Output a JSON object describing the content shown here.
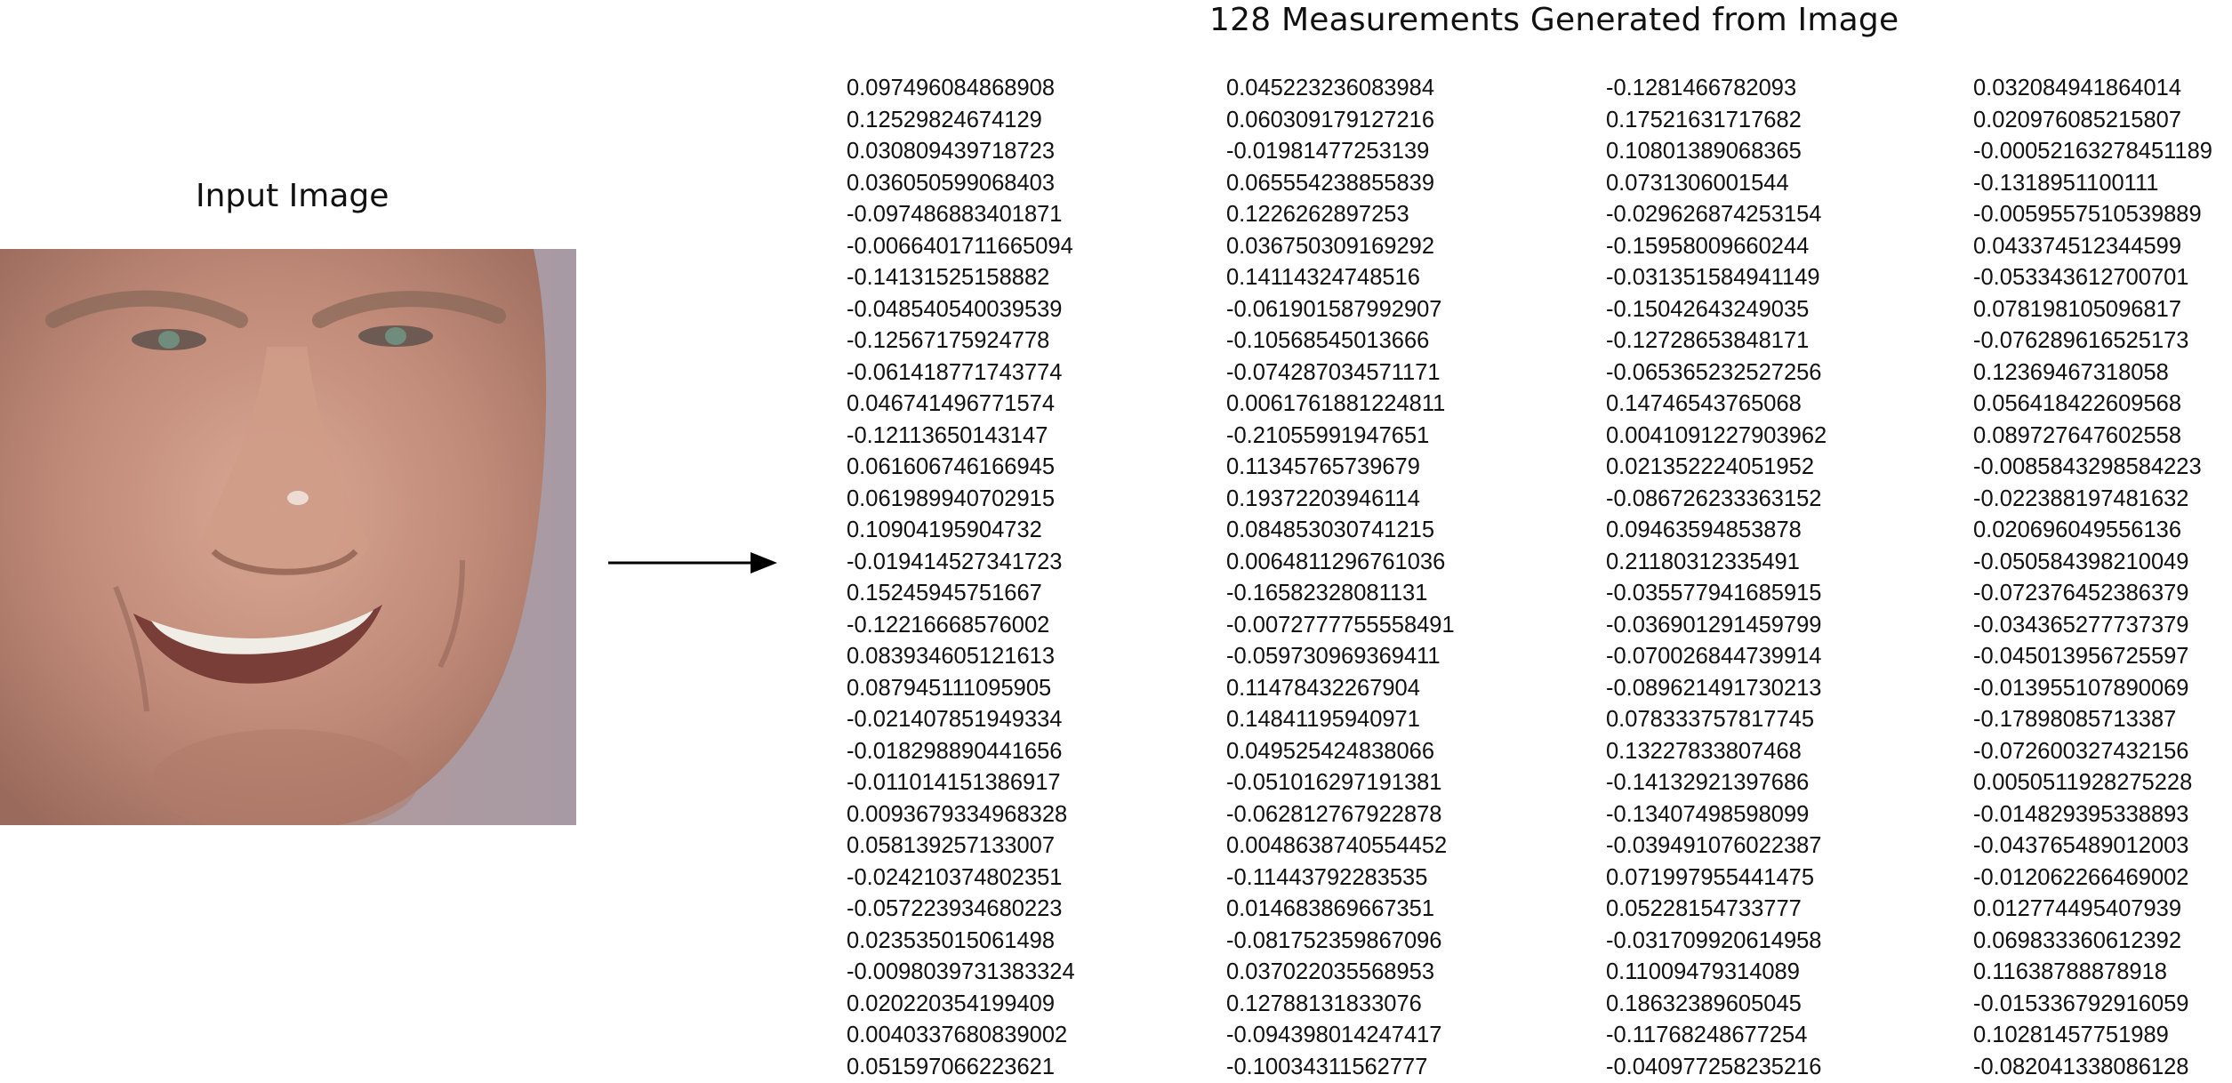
{
  "title": "128 Measurements Generated from Image",
  "input_label": "Input Image",
  "columns": [
    [
      "0.097496084868908",
      "0.12529824674129",
      "0.030809439718723",
      "0.036050599068403",
      "-0.097486883401871",
      "-0.0066401711665094",
      "-0.14131525158882",
      "-0.048540540039539",
      "-0.12567175924778",
      "-0.061418771743774",
      "0.046741496771574",
      "-0.12113650143147",
      "0.061606746166945",
      "0.061989940702915",
      "0.10904195904732",
      "-0.019414527341723",
      "0.15245945751667",
      "-0.12216668576002",
      "0.083934605121613",
      "0.087945111095905",
      "-0.021407851949334",
      "-0.018298890441656",
      "-0.011014151386917",
      "0.0093679334968328",
      "0.058139257133007",
      "-0.024210374802351",
      "-0.057223934680223",
      "0.023535015061498",
      "-0.0098039731383324",
      "0.020220354199409",
      "0.0040337680839002",
      "0.051597066223621"
    ],
    [
      "0.045223236083984",
      "0.060309179127216",
      "-0.01981477253139",
      "0.065554238855839",
      "0.1226262897253",
      "0.036750309169292",
      "0.14114324748516",
      "-0.061901587992907",
      "-0.10568545013666",
      "-0.074287034571171",
      "0.0061761881224811",
      "-0.21055991947651",
      "0.11345765739679",
      "0.19372203946114",
      "0.084853030741215",
      "0.0064811296761036",
      "-0.16582328081131",
      "-0.0072777755558491",
      "-0.059730969369411",
      "0.11478432267904",
      "0.14841195940971",
      "0.049525424838066",
      "-0.051016297191381",
      "-0.062812767922878",
      "0.0048638740554452",
      "-0.11443792283535",
      "0.014683869667351",
      "-0.081752359867096",
      "0.037022035568953",
      "0.12788131833076",
      "-0.094398014247417",
      "-0.10034311562777"
    ],
    [
      "-0.1281466782093",
      "0.17521631717682",
      "0.10801389068365",
      "0.0731306001544",
      "-0.029626874253154",
      "-0.15958009660244",
      "-0.031351584941149",
      "-0.15042643249035",
      "-0.12728653848171",
      "-0.065365232527256",
      "0.14746543765068",
      "0.0041091227903962",
      "0.021352224051952",
      "-0.086726233363152",
      "0.09463594853878",
      "0.21180312335491",
      "-0.035577941685915",
      "-0.036901291459799",
      "-0.070026844739914",
      "-0.089621491730213",
      "0.078333757817745",
      "0.13227833807468",
      "-0.14132921397686",
      "-0.13407498598099",
      "-0.039491076022387",
      "0.071997955441475",
      "0.05228154733777",
      "-0.031709920614958",
      "0.11009479314089",
      "0.18632389605045",
      "-0.11768248677254",
      "-0.040977258235216"
    ],
    [
      "0.032084941864014",
      "0.020976085215807",
      "-0.00052163278451189",
      "-0.1318951100111",
      "-0.0059557510539889",
      "0.043374512344599",
      "-0.053343612700701",
      "0.078198105096817",
      "-0.076289616525173",
      "0.12369467318058",
      "0.056418422609568",
      "0.089727647602558",
      "-0.0085843298584223",
      "-0.022388197481632",
      "0.020696049556136",
      "-0.050584398210049",
      "-0.072376452386379",
      "-0.034365277737379",
      "-0.045013956725597",
      "-0.013955107890069",
      "-0.17898085713387",
      "-0.072600327432156",
      "0.0050511928275228",
      "-0.014829395338893",
      "-0.043765489012003",
      "-0.012062266469002",
      "0.012774495407939",
      "0.069833360612392",
      "0.11638788878918",
      "-0.015336792916059",
      "0.10281457751989",
      "-0.082041338086128"
    ]
  ]
}
